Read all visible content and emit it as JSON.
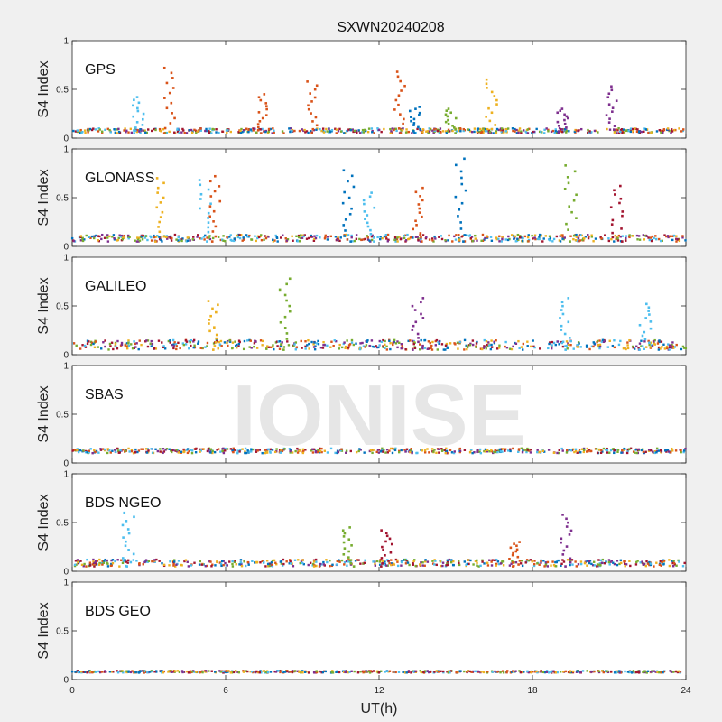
{
  "figure": {
    "title": "SXWN20240208",
    "xlabel": "UT(h)",
    "watermark": "IONISE"
  },
  "chart_data": {
    "type": "scatter",
    "title": "SXWN20240208",
    "xlabel": "UT(h)",
    "ylabel": "S4 Index",
    "xlim": [
      0,
      24
    ],
    "ylim": [
      0,
      1
    ],
    "xticks": [
      "0",
      "6",
      "12",
      "18",
      "24"
    ],
    "yticks": [
      "0",
      "0.5",
      "1"
    ],
    "grid": false,
    "panels": [
      {
        "name": "GPS",
        "baseline": [
          0.05,
          0.1
        ],
        "spikes": [
          {
            "x": 2.6,
            "y": 0.42,
            "color": "#4dbeee"
          },
          {
            "x": 3.8,
            "y": 0.72,
            "color": "#d95319"
          },
          {
            "x": 7.4,
            "y": 0.45,
            "color": "#d95319"
          },
          {
            "x": 9.4,
            "y": 0.58,
            "color": "#d95319"
          },
          {
            "x": 12.8,
            "y": 0.68,
            "color": "#d95319"
          },
          {
            "x": 13.4,
            "y": 0.32,
            "color": "#0072bd"
          },
          {
            "x": 14.8,
            "y": 0.3,
            "color": "#77ac30"
          },
          {
            "x": 16.4,
            "y": 0.6,
            "color": "#edb120"
          },
          {
            "x": 19.2,
            "y": 0.3,
            "color": "#7e2f8e"
          },
          {
            "x": 21.1,
            "y": 0.53,
            "color": "#7e2f8e"
          }
        ]
      },
      {
        "name": "GLONASS",
        "baseline": [
          0.05,
          0.12
        ],
        "spikes": [
          {
            "x": 3.4,
            "y": 0.7,
            "color": "#edb120"
          },
          {
            "x": 5.6,
            "y": 0.72,
            "color": "#d95319"
          },
          {
            "x": 5.2,
            "y": 0.68,
            "color": "#4dbeee"
          },
          {
            "x": 10.8,
            "y": 0.78,
            "color": "#0072bd"
          },
          {
            "x": 11.6,
            "y": 0.55,
            "color": "#4dbeee"
          },
          {
            "x": 13.5,
            "y": 0.6,
            "color": "#d95319"
          },
          {
            "x": 15.2,
            "y": 0.9,
            "color": "#0072bd"
          },
          {
            "x": 19.5,
            "y": 0.83,
            "color": "#77ac30"
          },
          {
            "x": 21.3,
            "y": 0.62,
            "color": "#a2142f"
          }
        ]
      },
      {
        "name": "GALILEO",
        "baseline": [
          0.05,
          0.15
        ],
        "spikes": [
          {
            "x": 5.5,
            "y": 0.55,
            "color": "#edb120"
          },
          {
            "x": 8.3,
            "y": 0.78,
            "color": "#77ac30"
          },
          {
            "x": 13.5,
            "y": 0.58,
            "color": "#7e2f8e"
          },
          {
            "x": 19.3,
            "y": 0.58,
            "color": "#4dbeee"
          },
          {
            "x": 22.4,
            "y": 0.52,
            "color": "#4dbeee"
          }
        ]
      },
      {
        "name": "SBAS",
        "baseline": [
          0.1,
          0.15
        ],
        "spikes": []
      },
      {
        "name": "BDS NGEO",
        "baseline": [
          0.05,
          0.12
        ],
        "spikes": [
          {
            "x": 2.2,
            "y": 0.6,
            "color": "#4dbeee"
          },
          {
            "x": 10.8,
            "y": 0.45,
            "color": "#77ac30"
          },
          {
            "x": 12.3,
            "y": 0.42,
            "color": "#a2142f"
          },
          {
            "x": 17.3,
            "y": 0.3,
            "color": "#d95319"
          },
          {
            "x": 19.3,
            "y": 0.58,
            "color": "#7e2f8e"
          }
        ]
      },
      {
        "name": "BDS GEO",
        "baseline": [
          0.07,
          0.09
        ],
        "spikes": []
      }
    ],
    "series_colors": [
      "#0072bd",
      "#d95319",
      "#edb120",
      "#7e2f8e",
      "#77ac30",
      "#4dbeee",
      "#a2142f"
    ]
  }
}
